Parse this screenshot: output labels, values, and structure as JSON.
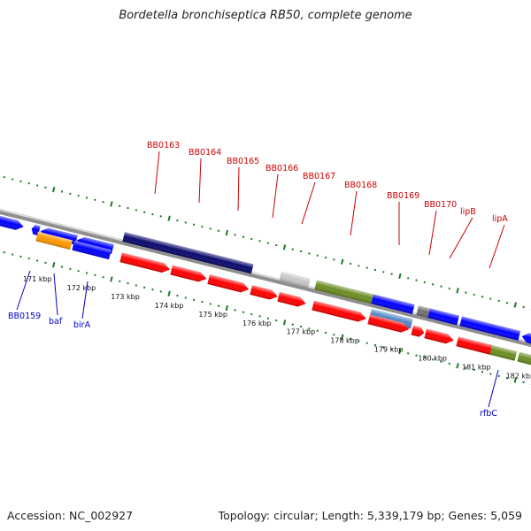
{
  "title": "Bordetella bronchiseptica RB50, complete genome",
  "footer": {
    "accession": "Accession: NC_002927",
    "summary": "Topology: circular; Length: 5,339,179 bp; Genes: 5,059"
  },
  "colors": {
    "backbone": "#8f8f8f",
    "dots": "#1f7a1f",
    "label_red": "#cc0000",
    "label_blue": "#0000cc",
    "navy": "#0a0a6e",
    "red": "#ff0000",
    "blue": "#0000ff",
    "orange": "#ff9900",
    "olive": "#6b8e23",
    "gray": "#c8c8c8",
    "darkgray": "#707070",
    "steel": "#4f87c7"
  },
  "axis": {
    "ticks": [
      "171 kbp",
      "172 kbp",
      "173 kbp",
      "174 kbp",
      "175 kbp",
      "176 kbp",
      "177 kbp",
      "178 kbp",
      "179 kbp",
      "180 kbp",
      "181 kbp",
      "182 kbp"
    ]
  },
  "gene_labels": [
    {
      "id": "bb0159",
      "text": "BB0159",
      "color": "blue"
    },
    {
      "id": "baf",
      "text": "baf",
      "color": "blue"
    },
    {
      "id": "bira",
      "text": "birA",
      "color": "blue"
    },
    {
      "id": "bb0163",
      "text": "BB0163",
      "color": "red"
    },
    {
      "id": "bb0164",
      "text": "BB0164",
      "color": "red"
    },
    {
      "id": "bb0165",
      "text": "BB0165",
      "color": "red"
    },
    {
      "id": "bb0166",
      "text": "BB0166",
      "color": "red"
    },
    {
      "id": "bb0167",
      "text": "BB0167",
      "color": "red"
    },
    {
      "id": "bb0168",
      "text": "BB0168",
      "color": "red"
    },
    {
      "id": "bb0169",
      "text": "BB0169",
      "color": "red"
    },
    {
      "id": "bb0170",
      "text": "BB0170",
      "color": "red"
    },
    {
      "id": "lipb",
      "text": "lipB",
      "color": "red"
    },
    {
      "id": "lipa",
      "text": "lipA",
      "color": "red"
    },
    {
      "id": "rfbc",
      "text": "rfbC",
      "color": "blue"
    }
  ]
}
